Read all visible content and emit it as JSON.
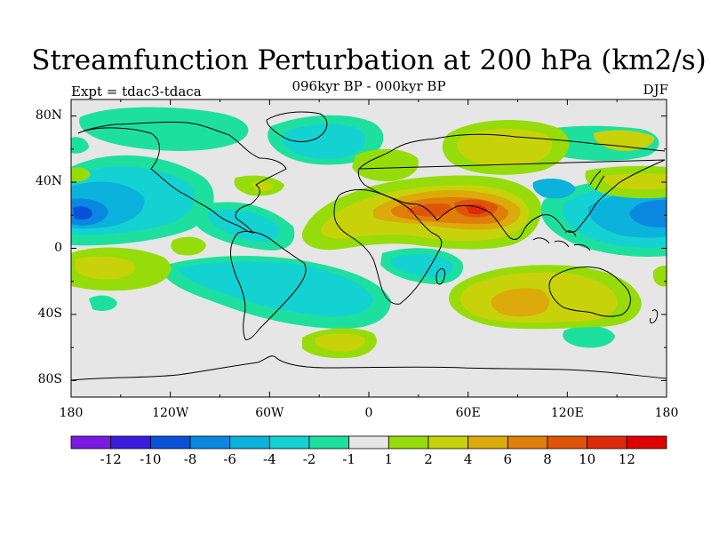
{
  "title": "Streamfunction Perturbation at 200 hPa (km2/s)",
  "subtitle": "096kyr BP - 000kyr BP",
  "left_label": "Expt = tdac3-tdaca",
  "right_label": "DJF",
  "map": {
    "x_ticks": [
      {
        "lon": -180,
        "label": "180"
      },
      {
        "lon": -120,
        "label": "120W"
      },
      {
        "lon": -60,
        "label": "60W"
      },
      {
        "lon": 0,
        "label": "0"
      },
      {
        "lon": 60,
        "label": "60E"
      },
      {
        "lon": 120,
        "label": "120E"
      },
      {
        "lon": 180,
        "label": "180"
      }
    ],
    "y_ticks": [
      {
        "lat": 80,
        "label": "80N"
      },
      {
        "lat": 40,
        "label": "40N"
      },
      {
        "lat": 0,
        "label": "0"
      },
      {
        "lat": -40,
        "label": "40S"
      },
      {
        "lat": -80,
        "label": "80S"
      }
    ],
    "lon_range": [
      -180,
      180
    ],
    "lat_range": [
      -90,
      90
    ]
  },
  "colorbar": {
    "levels": [
      "-12",
      "-10",
      "-8",
      "-6",
      "-4",
      "-2",
      "-1",
      "1",
      "2",
      "4",
      "6",
      "8",
      "10",
      "12"
    ],
    "colors": [
      "#7a1ae0",
      "#3c1ce0",
      "#0a50d8",
      "#0a88e0",
      "#0ab2dc",
      "#14d2d2",
      "#1ee09e",
      "#e6e6e6",
      "#96dc0a",
      "#c8d20a",
      "#dcaa0a",
      "#e07e0a",
      "#e0540a",
      "#e0280a",
      "#e00000"
    ]
  },
  "field": {
    "background_color": "#e6e6e6"
  }
}
